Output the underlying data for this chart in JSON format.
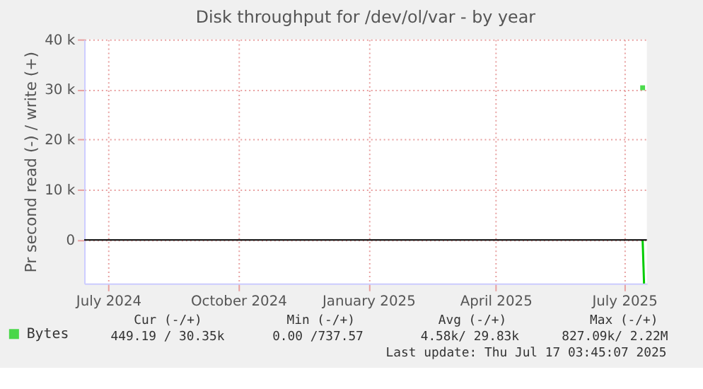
{
  "chart_data": {
    "type": "line",
    "title": "Disk throughput for /dev/ol/var - by year",
    "ylabel": "Pr second read (-) / write (+)",
    "series": [
      {
        "name": "Bytes",
        "type": "scatter",
        "marker": "square",
        "color": "#00cc00",
        "x": [
          "2025-07-14"
        ],
        "values": [
          30350
        ]
      },
      {
        "color": "#00cc00",
        "x": [
          "2025-07-14",
          "2025-07-15"
        ],
        "values": [
          0,
          -8700
        ]
      }
    ],
    "xlim": [
      "2024-06-14",
      "2025-07-17"
    ],
    "xticks": [
      {
        "value": "2024-07-01",
        "label": "July 2024"
      },
      {
        "value": "2024-10-01",
        "label": "October 2024"
      },
      {
        "value": "2025-01-01",
        "label": "January 2025"
      },
      {
        "value": "2025-04-01",
        "label": "April 2025"
      },
      {
        "value": "2025-07-01",
        "label": "July 2025"
      }
    ],
    "ylim": [
      -8700,
      40000
    ],
    "yticks": [
      {
        "value": 0,
        "label": "0"
      },
      {
        "value": 10000,
        "label": "10 k"
      },
      {
        "value": 20000,
        "label": "20 k"
      },
      {
        "value": 30000,
        "label": "30 k"
      },
      {
        "value": 40000,
        "label": "40 k"
      }
    ],
    "ref_lines": [
      {
        "axis": "y",
        "value": 0,
        "color": "#000000"
      }
    ],
    "grid": true,
    "legend": "bottom left",
    "annotations": [
      "Cur (-/+)",
      "Min (-/+)",
      "Avg (-/+)",
      "Max (-/+)",
      "449.19 / 30.35k",
      "0.00 /737.57",
      "4.58k/ 29.83k",
      "827.09k/  2.22M",
      "Last update: Thu Jul 17 03:45:07 2025"
    ]
  }
}
